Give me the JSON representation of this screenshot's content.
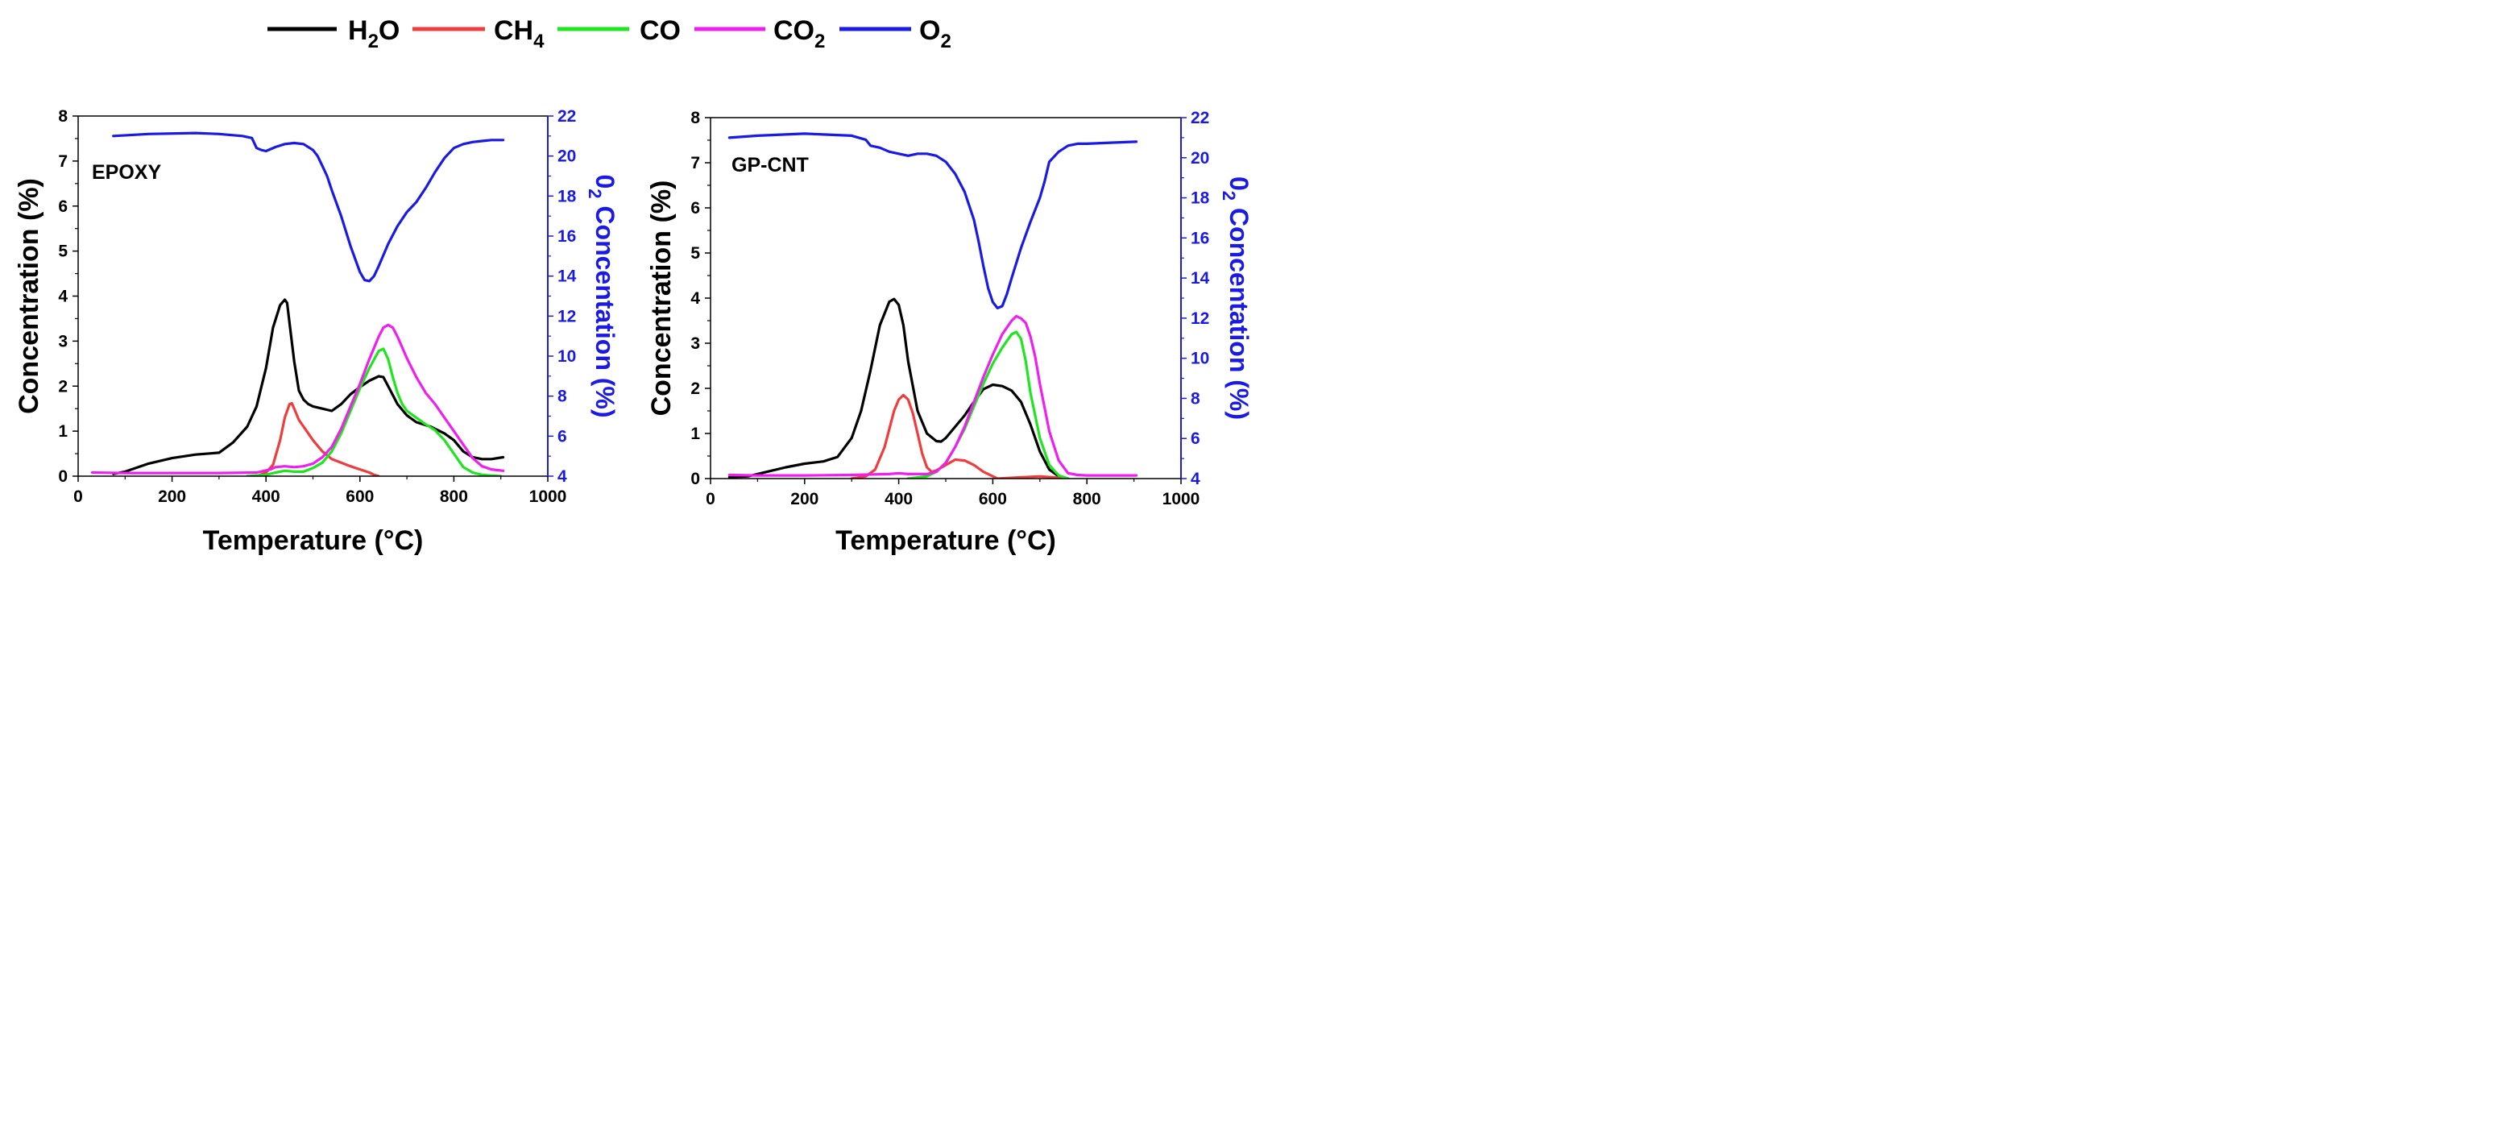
{
  "legend": [
    {
      "key": "h2o",
      "base": "H",
      "sub": "2",
      "tail": "O",
      "color": "#000000"
    },
    {
      "key": "ch4",
      "base": "CH",
      "sub": "4",
      "tail": "",
      "color": "#f03c3c"
    },
    {
      "key": "co",
      "base": "CO",
      "sub": "",
      "tail": "",
      "color": "#1ee61e"
    },
    {
      "key": "co2",
      "base": "CO",
      "sub": "2",
      "tail": "",
      "color": "#f01ef0"
    },
    {
      "key": "o2",
      "base": "O",
      "sub": "2",
      "tail": "",
      "color": "#1a1ae6"
    }
  ],
  "chart_data": [
    {
      "type": "line",
      "title": "EPOXY",
      "xlabel": "Temperature (°C)",
      "ylabel": "Concentration (%)",
      "y2label_base": "0",
      "y2label_sub": "2",
      "y2label_tail": " Concentation (%)",
      "xlim": [
        0,
        1000
      ],
      "ylim": [
        0,
        8
      ],
      "y2lim": [
        4,
        22
      ],
      "x_ticks": [
        "0",
        "200",
        "400",
        "600",
        "800",
        "1000"
      ],
      "y_ticks": [
        "0",
        "1",
        "2",
        "3",
        "4",
        "5",
        "6",
        "7",
        "8"
      ],
      "y2_ticks": [
        "4",
        "6",
        "8",
        "10",
        "12",
        "14",
        "16",
        "18",
        "20",
        "22"
      ],
      "series": [
        {
          "name": "H2O",
          "axis": "left",
          "color": "#000000",
          "x": [
            75,
            100,
            150,
            200,
            250,
            300,
            330,
            360,
            380,
            400,
            415,
            430,
            440,
            445,
            450,
            460,
            470,
            480,
            490,
            500,
            520,
            540,
            560,
            580,
            600,
            620,
            640,
            650,
            660,
            670,
            680,
            700,
            720,
            750,
            780,
            800,
            820,
            840,
            860,
            880,
            905
          ],
          "y": [
            0.05,
            0.1,
            0.28,
            0.4,
            0.48,
            0.52,
            0.75,
            1.1,
            1.55,
            2.4,
            3.3,
            3.8,
            3.92,
            3.85,
            3.4,
            2.55,
            1.9,
            1.7,
            1.6,
            1.55,
            1.5,
            1.45,
            1.6,
            1.82,
            1.98,
            2.12,
            2.22,
            2.2,
            2.0,
            1.8,
            1.6,
            1.35,
            1.2,
            1.1,
            0.95,
            0.8,
            0.55,
            0.42,
            0.38,
            0.38,
            0.42
          ]
        },
        {
          "name": "CH4",
          "axis": "left",
          "color": "#f03c3c",
          "x": [
            380,
            400,
            415,
            430,
            440,
            450,
            455,
            460,
            470,
            480,
            500,
            520,
            540,
            560,
            580,
            600,
            620,
            630,
            640
          ],
          "y": [
            0.0,
            0.08,
            0.25,
            0.8,
            1.3,
            1.6,
            1.62,
            1.5,
            1.25,
            1.1,
            0.8,
            0.55,
            0.38,
            0.3,
            0.22,
            0.15,
            0.08,
            0.03,
            0.0
          ]
        },
        {
          "name": "CO",
          "axis": "left",
          "color": "#1ee61e",
          "x": [
            360,
            400,
            420,
            440,
            460,
            480,
            500,
            520,
            540,
            560,
            580,
            600,
            620,
            640,
            650,
            660,
            670,
            680,
            690,
            700,
            720,
            740,
            760,
            780,
            800,
            820,
            840,
            860,
            880,
            900
          ],
          "y": [
            0.0,
            0.03,
            0.08,
            0.12,
            0.1,
            0.1,
            0.18,
            0.3,
            0.55,
            0.95,
            1.45,
            1.95,
            2.4,
            2.78,
            2.83,
            2.6,
            2.2,
            1.85,
            1.6,
            1.45,
            1.3,
            1.15,
            1.02,
            0.8,
            0.5,
            0.2,
            0.08,
            0.03,
            0.01,
            0.0
          ]
        },
        {
          "name": "CO2",
          "axis": "left",
          "color": "#f01ef0",
          "x": [
            30,
            100,
            200,
            300,
            380,
            410,
            420,
            440,
            460,
            480,
            500,
            520,
            540,
            560,
            580,
            600,
            620,
            640,
            650,
            660,
            670,
            680,
            700,
            720,
            740,
            760,
            780,
            800,
            820,
            840,
            860,
            880,
            905
          ],
          "y": [
            0.08,
            0.07,
            0.07,
            0.07,
            0.08,
            0.15,
            0.2,
            0.22,
            0.2,
            0.22,
            0.28,
            0.42,
            0.65,
            1.05,
            1.55,
            2.05,
            2.6,
            3.1,
            3.3,
            3.36,
            3.3,
            3.1,
            2.62,
            2.2,
            1.85,
            1.6,
            1.3,
            1.0,
            0.7,
            0.4,
            0.22,
            0.15,
            0.12
          ]
        },
        {
          "name": "O2",
          "axis": "right",
          "color": "#1a1ae6",
          "x": [
            75,
            150,
            250,
            300,
            350,
            370,
            380,
            390,
            400,
            420,
            440,
            460,
            480,
            500,
            510,
            520,
            530,
            540,
            560,
            580,
            600,
            610,
            620,
            630,
            640,
            660,
            680,
            700,
            720,
            740,
            760,
            780,
            800,
            820,
            840,
            860,
            880,
            905
          ],
          "y": [
            21.0,
            21.1,
            21.15,
            21.1,
            21.0,
            20.9,
            20.4,
            20.3,
            20.25,
            20.45,
            20.6,
            20.65,
            20.6,
            20.3,
            20.0,
            19.5,
            19.0,
            18.3,
            17.0,
            15.5,
            14.2,
            13.8,
            13.75,
            14.0,
            14.5,
            15.6,
            16.5,
            17.2,
            17.7,
            18.4,
            19.2,
            19.9,
            20.4,
            20.6,
            20.7,
            20.75,
            20.8,
            20.8
          ]
        }
      ]
    },
    {
      "type": "line",
      "title": "GP-CNT",
      "xlabel": "Temperature (°C)",
      "ylabel": "Concentration (%)",
      "y2label_base": "0",
      "y2label_sub": "2",
      "y2label_tail": " Concentation (%)",
      "xlim": [
        0,
        1000
      ],
      "ylim": [
        0,
        8
      ],
      "y2lim": [
        4,
        22
      ],
      "x_ticks": [
        "0",
        "200",
        "400",
        "600",
        "800",
        "1000"
      ],
      "y_ticks": [
        "0",
        "1",
        "2",
        "3",
        "4",
        "5",
        "6",
        "7",
        "8"
      ],
      "y2_ticks": [
        "4",
        "6",
        "8",
        "10",
        "12",
        "14",
        "16",
        "18",
        "20",
        "22"
      ],
      "series": [
        {
          "name": "H2O",
          "axis": "left",
          "color": "#000000",
          "x": [
            40,
            80,
            120,
            160,
            200,
            240,
            270,
            300,
            320,
            340,
            360,
            380,
            390,
            400,
            410,
            420,
            440,
            460,
            480,
            490,
            500,
            520,
            540,
            560,
            580,
            600,
            620,
            640,
            660,
            680,
            700,
            720,
            740,
            760
          ],
          "y": [
            0.03,
            0.05,
            0.15,
            0.25,
            0.33,
            0.38,
            0.48,
            0.9,
            1.5,
            2.4,
            3.4,
            3.92,
            3.98,
            3.85,
            3.4,
            2.6,
            1.5,
            1.0,
            0.83,
            0.82,
            0.9,
            1.15,
            1.4,
            1.7,
            1.98,
            2.08,
            2.05,
            1.95,
            1.7,
            1.2,
            0.6,
            0.2,
            0.05,
            0.0
          ]
        },
        {
          "name": "CH4",
          "axis": "left",
          "color": "#f03c3c",
          "x": [
            300,
            330,
            350,
            370,
            390,
            400,
            410,
            420,
            430,
            440,
            450,
            460,
            470,
            480,
            500,
            520,
            540,
            560,
            580,
            600,
            610,
            700,
            760
          ],
          "y": [
            0.0,
            0.05,
            0.2,
            0.7,
            1.5,
            1.75,
            1.85,
            1.75,
            1.45,
            1.0,
            0.55,
            0.25,
            0.15,
            0.18,
            0.3,
            0.42,
            0.4,
            0.3,
            0.15,
            0.05,
            0.0,
            0.05,
            0.0
          ]
        },
        {
          "name": "CO",
          "axis": "left",
          "color": "#1ee61e",
          "x": [
            420,
            460,
            480,
            500,
            520,
            540,
            560,
            580,
            600,
            620,
            640,
            650,
            660,
            670,
            680,
            700,
            720,
            740,
            760
          ],
          "y": [
            0.0,
            0.05,
            0.15,
            0.35,
            0.7,
            1.1,
            1.6,
            2.1,
            2.55,
            2.9,
            3.2,
            3.25,
            3.1,
            2.6,
            1.9,
            0.9,
            0.3,
            0.07,
            0.0
          ]
        },
        {
          "name": "CO2",
          "axis": "left",
          "color": "#f01ef0",
          "x": [
            40,
            100,
            200,
            300,
            380,
            400,
            420,
            460,
            480,
            500,
            520,
            540,
            560,
            580,
            600,
            620,
            640,
            650,
            660,
            670,
            680,
            690,
            700,
            720,
            740,
            760,
            780,
            800,
            850,
            905
          ],
          "y": [
            0.08,
            0.07,
            0.07,
            0.08,
            0.1,
            0.12,
            0.1,
            0.1,
            0.15,
            0.35,
            0.7,
            1.15,
            1.7,
            2.25,
            2.75,
            3.2,
            3.5,
            3.6,
            3.55,
            3.45,
            3.15,
            2.7,
            2.1,
            1.05,
            0.4,
            0.12,
            0.08,
            0.07,
            0.07,
            0.07
          ]
        },
        {
          "name": "O2",
          "axis": "right",
          "color": "#1a1ae6",
          "x": [
            40,
            100,
            200,
            300,
            330,
            340,
            360,
            380,
            400,
            420,
            440,
            460,
            480,
            500,
            520,
            540,
            560,
            570,
            580,
            590,
            600,
            610,
            620,
            630,
            640,
            660,
            680,
            700,
            710,
            720,
            740,
            760,
            780,
            800,
            850,
            905
          ],
          "y": [
            21.0,
            21.1,
            21.2,
            21.1,
            20.9,
            20.6,
            20.5,
            20.3,
            20.2,
            20.1,
            20.2,
            20.2,
            20.1,
            19.8,
            19.2,
            18.3,
            16.9,
            15.8,
            14.6,
            13.5,
            12.8,
            12.5,
            12.6,
            13.2,
            14.0,
            15.5,
            16.8,
            18.0,
            18.8,
            19.8,
            20.3,
            20.6,
            20.7,
            20.7,
            20.75,
            20.8
          ]
        }
      ]
    }
  ]
}
